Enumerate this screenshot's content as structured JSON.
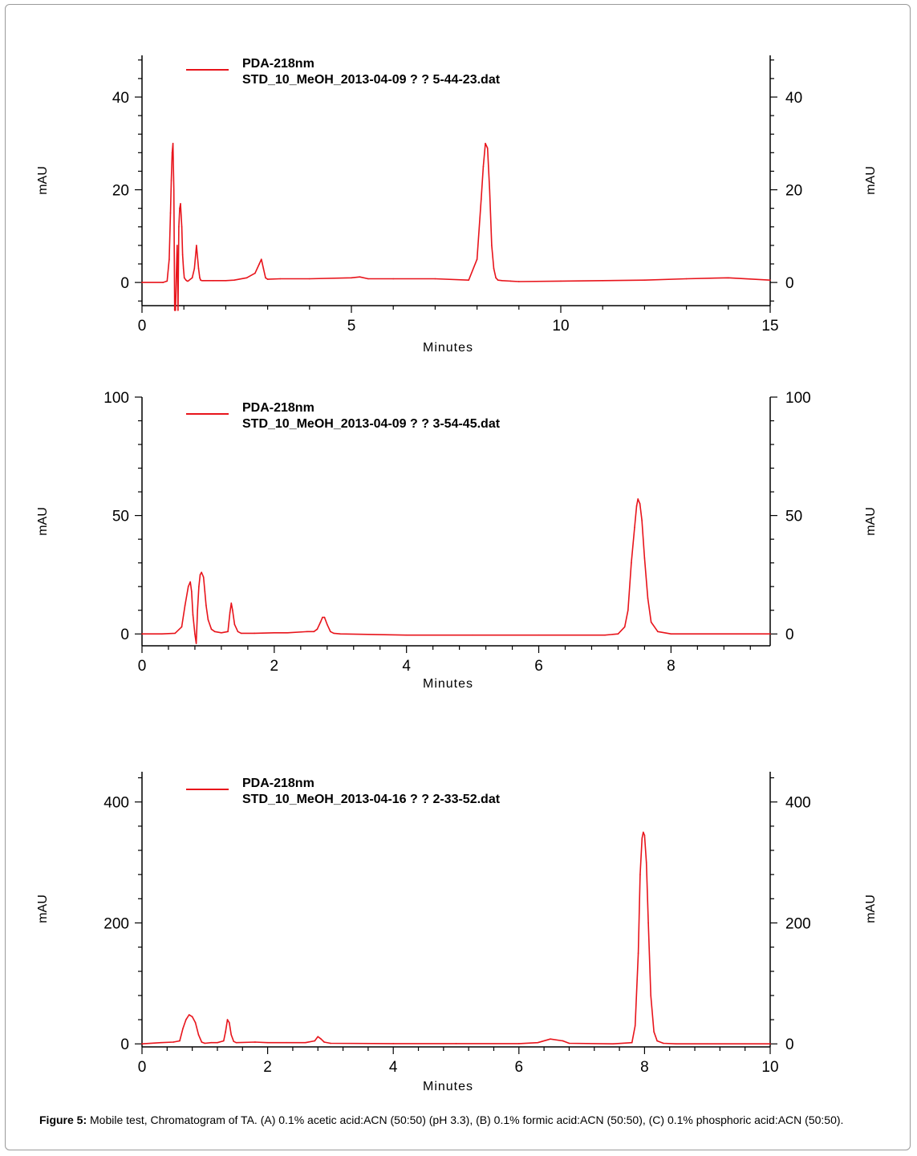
{
  "chart_data": [
    {
      "type": "line",
      "legend": [
        "PDA-218nm",
        "STD_10_MeOH_2013-04-09 ? ?  5-44-23.dat"
      ],
      "xlabel": "Minutes",
      "ylabel": "mAU",
      "xlim": [
        0,
        15
      ],
      "ylim": [
        -5,
        49
      ],
      "xticks": [
        0,
        5,
        10,
        15
      ],
      "yticks": [
        0,
        20,
        40
      ],
      "line_color": "#e8141b",
      "series": [
        {
          "x": [
            0,
            0.5,
            0.6,
            0.65,
            0.68,
            0.7,
            0.72,
            0.74,
            0.76,
            0.78,
            0.8,
            0.82,
            0.84,
            0.86,
            0.88,
            0.9,
            0.92,
            0.95,
            0.97,
            0.99,
            1.01,
            1.05,
            1.08,
            1.1,
            1.2,
            1.25,
            1.3,
            1.35,
            1.38,
            1.4,
            1.43,
            1.46,
            1.5,
            1.7,
            2.0,
            2.2,
            2.5,
            2.7,
            2.8,
            2.85,
            2.9,
            2.95,
            3.0,
            3.3,
            4.0,
            5.0,
            5.2,
            5.4,
            6.0,
            7.0,
            7.8,
            8.0,
            8.1,
            8.15,
            8.2,
            8.25,
            8.3,
            8.35,
            8.4,
            8.45,
            8.5,
            8.6,
            8.8,
            9.0,
            10.0,
            11.0,
            12.0,
            13.0,
            14.0,
            15.0
          ],
          "values": [
            0,
            0,
            0.3,
            5,
            15,
            22,
            28,
            30,
            20,
            -6,
            -6,
            2,
            8,
            -6,
            12,
            16,
            17,
            12,
            6,
            3,
            1,
            0.5,
            0.3,
            0.3,
            1,
            3,
            8,
            3,
            1,
            0.5,
            0.4,
            0.4,
            0.4,
            0.4,
            0.4,
            0.5,
            1,
            2,
            4,
            5,
            3,
            1,
            0.7,
            0.8,
            0.8,
            1,
            1.2,
            0.8,
            0.8,
            0.8,
            0.5,
            5,
            18,
            25,
            30,
            29,
            20,
            8,
            3,
            1,
            0.5,
            0.4,
            0.3,
            0.2,
            0.3,
            0.4,
            0.5,
            0.8,
            1,
            0.5
          ]
        }
      ]
    },
    {
      "type": "line",
      "legend": [
        "PDA-218nm",
        "STD_10_MeOH_2013-04-09 ? ?  3-54-45.dat"
      ],
      "xlabel": "Minutes",
      "ylabel": "mAU",
      "xlim": [
        0,
        9.5
      ],
      "ylim": [
        -5,
        100
      ],
      "xticks": [
        0,
        2,
        4,
        6,
        8
      ],
      "yticks": [
        0,
        50,
        100
      ],
      "line_color": "#e8141b",
      "series": [
        {
          "x": [
            0,
            0.3,
            0.5,
            0.6,
            0.65,
            0.7,
            0.73,
            0.75,
            0.77,
            0.8,
            0.82,
            0.84,
            0.86,
            0.88,
            0.9,
            0.93,
            0.95,
            0.97,
            1.0,
            1.05,
            1.1,
            1.2,
            1.3,
            1.33,
            1.35,
            1.37,
            1.4,
            1.45,
            1.5,
            1.7,
            2.0,
            2.2,
            2.5,
            2.6,
            2.65,
            2.7,
            2.73,
            2.76,
            2.8,
            2.85,
            2.9,
            3.0,
            4.0,
            5.0,
            6.0,
            7.0,
            7.2,
            7.3,
            7.35,
            7.4,
            7.45,
            7.48,
            7.5,
            7.53,
            7.56,
            7.6,
            7.65,
            7.7,
            7.8,
            8.0,
            9.0,
            9.5
          ],
          "values": [
            0,
            0,
            0.3,
            3,
            12,
            20,
            22,
            18,
            8,
            0,
            -4,
            10,
            20,
            25,
            26,
            24,
            18,
            12,
            6,
            2,
            1,
            0.5,
            1,
            9,
            13,
            10,
            4,
            1,
            0.3,
            0.3,
            0.5,
            0.5,
            1,
            1,
            2,
            5,
            7,
            7,
            4,
            1,
            0.3,
            0,
            -0.5,
            -0.5,
            -0.5,
            -0.5,
            0,
            3,
            10,
            30,
            45,
            54,
            57,
            55,
            48,
            32,
            15,
            5,
            1,
            0,
            0,
            0
          ]
        }
      ]
    },
    {
      "type": "line",
      "legend": [
        "PDA-218nm",
        "STD_10_MeOH_2013-04-16 ? ?  2-33-52.dat"
      ],
      "xlabel": "Minutes",
      "ylabel": "mAU",
      "xlim": [
        0,
        10
      ],
      "ylim": [
        -5,
        450
      ],
      "xticks": [
        0,
        2,
        4,
        6,
        8,
        10
      ],
      "yticks": [
        0,
        200,
        400
      ],
      "line_color": "#e8141b",
      "series": [
        {
          "x": [
            0,
            0.3,
            0.5,
            0.6,
            0.65,
            0.7,
            0.75,
            0.8,
            0.85,
            0.9,
            0.95,
            1.0,
            1.1,
            1.2,
            1.3,
            1.33,
            1.36,
            1.39,
            1.42,
            1.46,
            1.5,
            1.8,
            2.0,
            2.3,
            2.6,
            2.75,
            2.8,
            2.85,
            2.9,
            3.0,
            4.0,
            5.0,
            6.0,
            6.3,
            6.5,
            6.7,
            6.8,
            7.5,
            7.8,
            7.85,
            7.9,
            7.93,
            7.96,
            7.98,
            8.0,
            8.03,
            8.06,
            8.1,
            8.15,
            8.2,
            8.3,
            8.5,
            9.0,
            10.0
          ],
          "values": [
            0,
            2,
            3,
            5,
            25,
            40,
            48,
            45,
            35,
            15,
            3,
            1,
            2,
            2,
            5,
            20,
            40,
            35,
            15,
            4,
            2,
            3,
            2,
            2,
            2,
            5,
            12,
            8,
            3,
            1,
            0.5,
            0.5,
            0.5,
            2,
            8,
            5,
            1,
            0,
            2,
            30,
            150,
            280,
            340,
            350,
            345,
            300,
            200,
            80,
            20,
            5,
            1,
            0,
            0,
            0
          ]
        }
      ]
    }
  ],
  "caption": {
    "label": "Figure 5:",
    "text": " Mobile test, Chromatogram of TA. (A) 0.1% acetic acid:ACN (50:50) (pH 3.3), (B) 0.1% formic acid:ACN (50:50), (C) 0.1% phosphoric acid:ACN (50:50)."
  }
}
